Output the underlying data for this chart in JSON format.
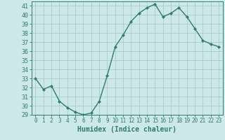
{
  "x": [
    0,
    1,
    2,
    3,
    4,
    5,
    6,
    7,
    8,
    9,
    10,
    11,
    12,
    13,
    14,
    15,
    16,
    17,
    18,
    19,
    20,
    21,
    22,
    23
  ],
  "y": [
    33,
    31.8,
    32.2,
    30.5,
    29.8,
    29.3,
    29.0,
    29.2,
    30.5,
    33.3,
    36.5,
    37.8,
    39.3,
    40.2,
    40.8,
    41.2,
    39.8,
    40.2,
    40.8,
    39.8,
    38.5,
    37.2,
    36.8,
    36.5
  ],
  "xlabel": "Humidex (Indice chaleur)",
  "bg_color": "#cce8e8",
  "line_color": "#2e7d6e",
  "marker_color": "#2e7d6e",
  "grid_color": "#aacccc",
  "ylim": [
    29,
    41.5
  ],
  "xlim": [
    -0.5,
    23.5
  ],
  "yticks": [
    29,
    30,
    31,
    32,
    33,
    34,
    35,
    36,
    37,
    38,
    39,
    40,
    41
  ],
  "xticks": [
    0,
    1,
    2,
    3,
    4,
    5,
    6,
    7,
    8,
    9,
    10,
    11,
    12,
    13,
    14,
    15,
    16,
    17,
    18,
    19,
    20,
    21,
    22,
    23
  ]
}
